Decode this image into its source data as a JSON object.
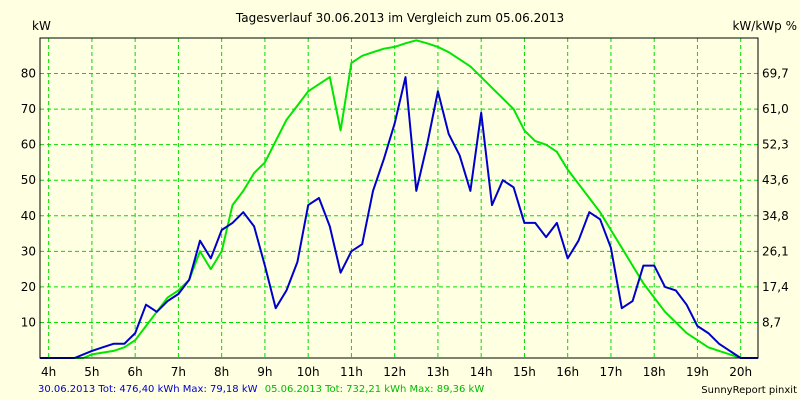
{
  "chart_data": {
    "type": "line",
    "title": "Tagesverlauf 30.06.2013 im Vergleich zum 05.06.2013",
    "y_left_unit": "kW",
    "y_right_unit": "kW/kWp  %",
    "x_range": [
      3.8,
      20.4
    ],
    "y_range": [
      0,
      90
    ],
    "x_ticks": [
      {
        "h": 4,
        "label": "4h"
      },
      {
        "h": 5,
        "label": "5h"
      },
      {
        "h": 6,
        "label": "6h"
      },
      {
        "h": 7,
        "label": "7h"
      },
      {
        "h": 8,
        "label": "8h"
      },
      {
        "h": 9,
        "label": "9h"
      },
      {
        "h": 10,
        "label": "10h"
      },
      {
        "h": 11,
        "label": "11h"
      },
      {
        "h": 12,
        "label": "12h"
      },
      {
        "h": 13,
        "label": "13h"
      },
      {
        "h": 14,
        "label": "14h"
      },
      {
        "h": 15,
        "label": "15h"
      },
      {
        "h": 16,
        "label": "16h"
      },
      {
        "h": 17,
        "label": "17h"
      },
      {
        "h": 18,
        "label": "18h"
      },
      {
        "h": 19,
        "label": "19h"
      },
      {
        "h": 20,
        "label": "20h"
      }
    ],
    "y_left_ticks": [
      10,
      20,
      30,
      40,
      50,
      60,
      70,
      80
    ],
    "y_right_ticks": [
      {
        "y": 10,
        "label": "8,7"
      },
      {
        "y": 20,
        "label": "17,4"
      },
      {
        "y": 30,
        "label": "26,1"
      },
      {
        "y": 40,
        "label": "34,8"
      },
      {
        "y": 50,
        "label": "43,6"
      },
      {
        "y": 60,
        "label": "52,3"
      },
      {
        "y": 70,
        "label": "61,0"
      },
      {
        "y": 80,
        "label": "69,7"
      }
    ],
    "grid": true,
    "series": [
      {
        "name": "30.06.2013",
        "color": "#0000cc",
        "summary": "30.06.2013 Tot: 476,40 kWh Max: 79,18 kW",
        "points": [
          [
            3.8,
            0
          ],
          [
            4.6,
            0
          ],
          [
            5.0,
            2
          ],
          [
            5.25,
            3
          ],
          [
            5.5,
            4
          ],
          [
            5.75,
            4
          ],
          [
            6.0,
            7
          ],
          [
            6.25,
            15
          ],
          [
            6.5,
            13
          ],
          [
            6.75,
            16
          ],
          [
            7.0,
            18
          ],
          [
            7.25,
            22
          ],
          [
            7.5,
            33
          ],
          [
            7.75,
            28
          ],
          [
            8.0,
            36
          ],
          [
            8.25,
            38
          ],
          [
            8.5,
            41
          ],
          [
            8.75,
            37
          ],
          [
            9.0,
            26
          ],
          [
            9.25,
            14
          ],
          [
            9.5,
            19
          ],
          [
            9.75,
            27
          ],
          [
            10.0,
            43
          ],
          [
            10.25,
            45
          ],
          [
            10.5,
            37
          ],
          [
            10.75,
            24
          ],
          [
            11.0,
            30
          ],
          [
            11.25,
            32
          ],
          [
            11.5,
            47
          ],
          [
            11.75,
            56
          ],
          [
            12.0,
            66
          ],
          [
            12.25,
            79
          ],
          [
            12.5,
            47
          ],
          [
            12.75,
            60
          ],
          [
            13.0,
            75
          ],
          [
            13.25,
            63
          ],
          [
            13.5,
            57
          ],
          [
            13.75,
            47
          ],
          [
            14.0,
            69
          ],
          [
            14.25,
            43
          ],
          [
            14.5,
            50
          ],
          [
            14.75,
            48
          ],
          [
            15.0,
            38
          ],
          [
            15.25,
            38
          ],
          [
            15.5,
            34
          ],
          [
            15.75,
            38
          ],
          [
            16.0,
            28
          ],
          [
            16.25,
            33
          ],
          [
            16.5,
            41
          ],
          [
            16.75,
            39
          ],
          [
            17.0,
            31
          ],
          [
            17.25,
            14
          ],
          [
            17.5,
            16
          ],
          [
            17.75,
            26
          ],
          [
            18.0,
            26
          ],
          [
            18.25,
            20
          ],
          [
            18.5,
            19
          ],
          [
            18.75,
            15
          ],
          [
            19.0,
            9
          ],
          [
            19.25,
            7
          ],
          [
            19.5,
            4
          ],
          [
            19.75,
            2
          ],
          [
            20.0,
            0
          ],
          [
            20.4,
            0
          ]
        ]
      },
      {
        "name": "05.06.2013",
        "color": "#00e600",
        "summary": "05.06.2013 Tot: 732,21 kWh Max: 89,36 kW",
        "points": [
          [
            3.8,
            0
          ],
          [
            4.8,
            0
          ],
          [
            5.0,
            1
          ],
          [
            5.5,
            2
          ],
          [
            5.75,
            3
          ],
          [
            6.0,
            5
          ],
          [
            6.25,
            9
          ],
          [
            6.5,
            13
          ],
          [
            6.75,
            17
          ],
          [
            7.0,
            19
          ],
          [
            7.25,
            22
          ],
          [
            7.5,
            30
          ],
          [
            7.75,
            25
          ],
          [
            8.0,
            30
          ],
          [
            8.25,
            43
          ],
          [
            8.5,
            47
          ],
          [
            8.75,
            52
          ],
          [
            9.0,
            55
          ],
          [
            9.25,
            61
          ],
          [
            9.5,
            67
          ],
          [
            9.75,
            71
          ],
          [
            10.0,
            75
          ],
          [
            10.25,
            77
          ],
          [
            10.5,
            79
          ],
          [
            10.75,
            64
          ],
          [
            11.0,
            83
          ],
          [
            11.25,
            85
          ],
          [
            11.5,
            86
          ],
          [
            11.75,
            87
          ],
          [
            12.0,
            87.5
          ],
          [
            12.25,
            88.5
          ],
          [
            12.5,
            89.36
          ],
          [
            12.75,
            88.5
          ],
          [
            13.0,
            87.5
          ],
          [
            13.25,
            86
          ],
          [
            13.5,
            84
          ],
          [
            13.75,
            82
          ],
          [
            14.0,
            79
          ],
          [
            14.25,
            76
          ],
          [
            14.5,
            73
          ],
          [
            14.75,
            70
          ],
          [
            15.0,
            64
          ],
          [
            15.25,
            61
          ],
          [
            15.5,
            60
          ],
          [
            15.75,
            58
          ],
          [
            16.0,
            53
          ],
          [
            16.25,
            49
          ],
          [
            16.5,
            45
          ],
          [
            16.75,
            41
          ],
          [
            17.0,
            36
          ],
          [
            17.25,
            31
          ],
          [
            17.5,
            26
          ],
          [
            17.75,
            21
          ],
          [
            18.0,
            17
          ],
          [
            18.25,
            13
          ],
          [
            18.5,
            10
          ],
          [
            18.75,
            7
          ],
          [
            19.0,
            5
          ],
          [
            19.25,
            3
          ],
          [
            19.5,
            2
          ],
          [
            19.75,
            1
          ],
          [
            20.0,
            0
          ],
          [
            20.4,
            0
          ]
        ]
      }
    ],
    "footer_credit": "SunnyReport pinxit"
  }
}
